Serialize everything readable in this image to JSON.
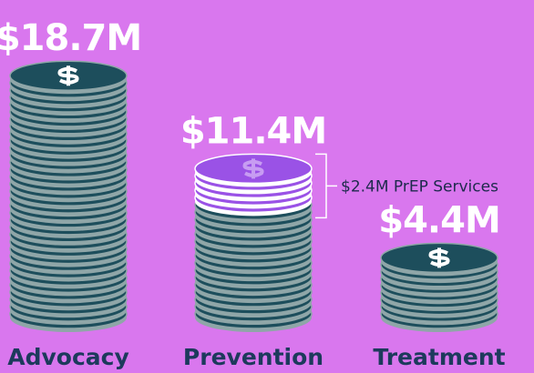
{
  "chart_data": {
    "type": "pictograph",
    "categories": [
      "Advocacy",
      "Prevention",
      "Treatment"
    ],
    "values": [
      18.7,
      11.4,
      4.4
    ],
    "value_labels": [
      "$18.7M",
      "$11.4M",
      "$4.4M"
    ],
    "color": "#1d4e5c",
    "annotation": {
      "label": "$2.4M PrEP Services",
      "value": 2.4,
      "color": "#9a52e6"
    }
  }
}
